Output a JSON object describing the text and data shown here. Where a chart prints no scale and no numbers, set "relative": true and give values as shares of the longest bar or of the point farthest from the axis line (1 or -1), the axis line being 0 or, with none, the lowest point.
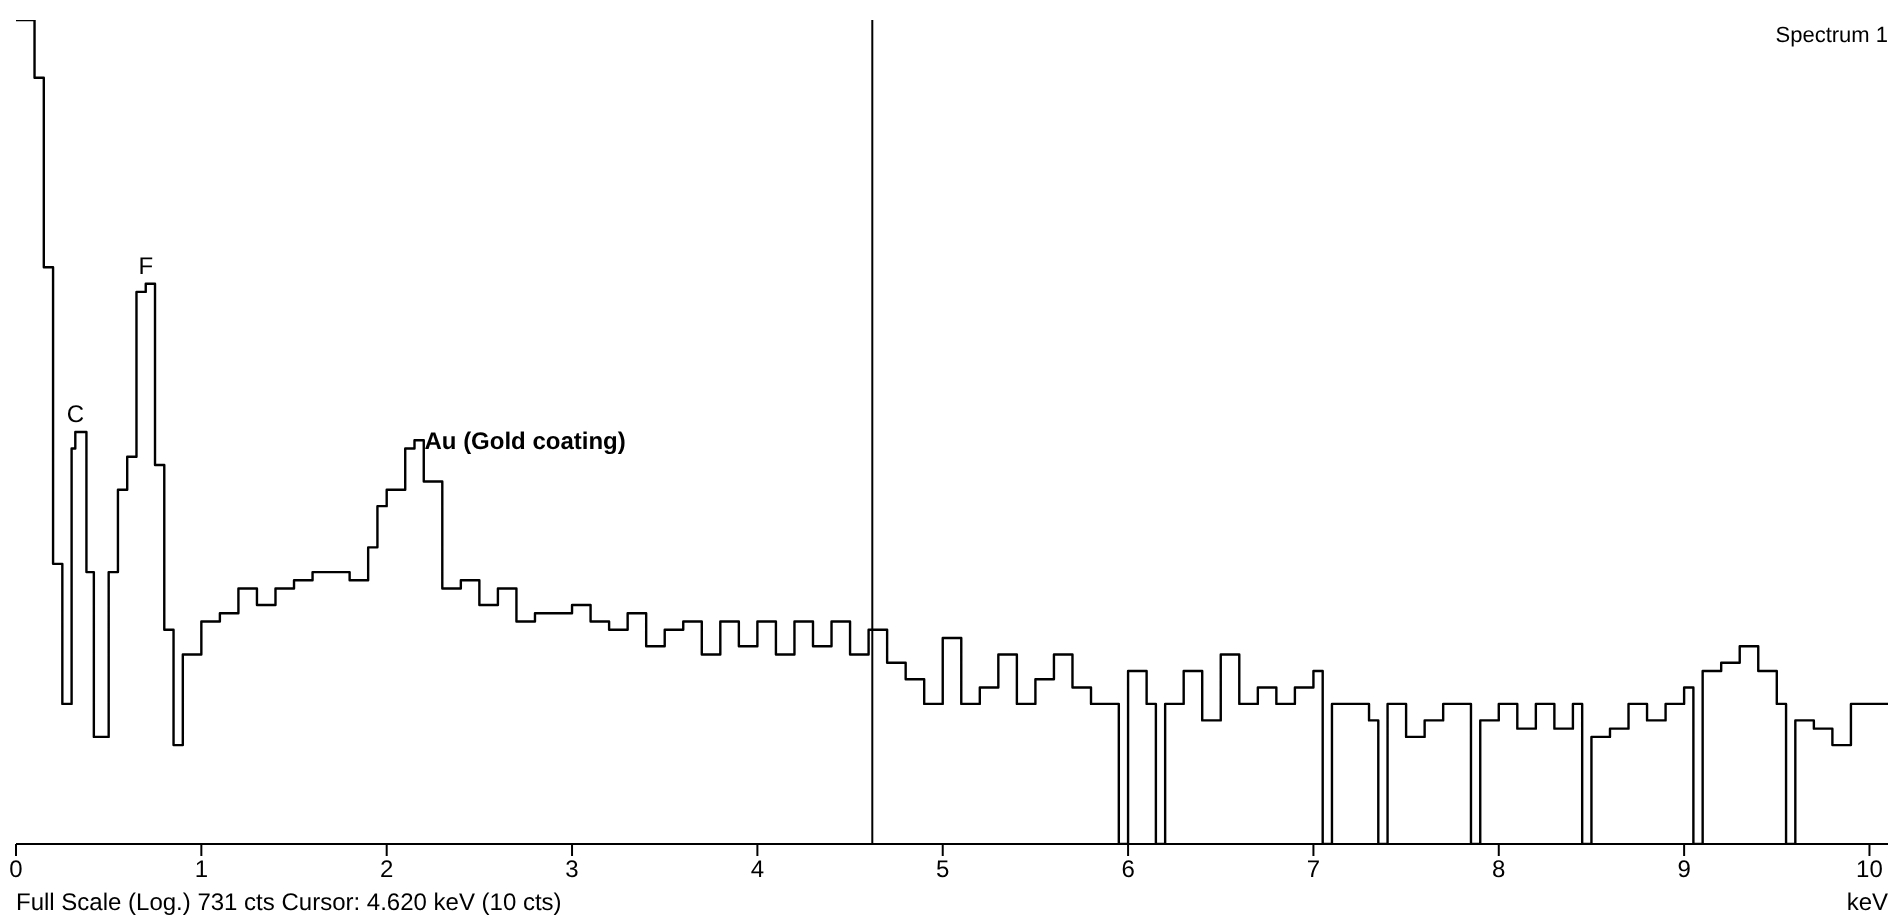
{
  "chart_data": {
    "type": "step",
    "relative": true,
    "xlabel": "keV",
    "xlim": [
      0,
      10.1
    ],
    "xticks": [
      0,
      1,
      2,
      3,
      4,
      5,
      6,
      7,
      8,
      9,
      10
    ],
    "x": [
      0,
      0.05,
      0.1,
      0.15,
      0.2,
      0.25,
      0.3,
      0.32,
      0.38,
      0.42,
      0.5,
      0.55,
      0.6,
      0.65,
      0.7,
      0.75,
      0.8,
      0.85,
      0.9,
      1.0,
      1.1,
      1.2,
      1.3,
      1.4,
      1.5,
      1.6,
      1.7,
      1.8,
      1.9,
      1.95,
      2.0,
      2.1,
      2.15,
      2.2,
      2.3,
      2.4,
      2.5,
      2.6,
      2.7,
      2.8,
      2.9,
      3.0,
      3.1,
      3.2,
      3.3,
      3.4,
      3.5,
      3.6,
      3.7,
      3.8,
      3.9,
      4.0,
      4.1,
      4.2,
      4.3,
      4.4,
      4.5,
      4.6,
      4.7,
      4.8,
      4.9,
      5.0,
      5.1,
      5.2,
      5.3,
      5.4,
      5.5,
      5.6,
      5.7,
      5.8,
      5.9,
      5.95,
      6.0,
      6.1,
      6.15,
      6.2,
      6.3,
      6.4,
      6.5,
      6.6,
      6.7,
      6.8,
      6.9,
      7.0,
      7.05,
      7.1,
      7.2,
      7.3,
      7.35,
      7.4,
      7.5,
      7.6,
      7.7,
      7.8,
      7.85,
      7.9,
      8.0,
      8.1,
      8.2,
      8.3,
      8.4,
      8.45,
      8.5,
      8.6,
      8.7,
      8.8,
      8.9,
      9.0,
      9.05,
      9.1,
      9.2,
      9.3,
      9.4,
      9.5,
      9.55,
      9.6,
      9.7,
      9.8,
      9.9,
      10.0,
      10.1
    ],
    "series": [
      {
        "color": "#000000",
        "values": [
          1.0,
          1.0,
          0.93,
          0.7,
          0.34,
          0.17,
          0.48,
          0.5,
          0.33,
          0.13,
          0.33,
          0.43,
          0.47,
          0.67,
          0.68,
          0.46,
          0.26,
          0.12,
          0.23,
          0.27,
          0.28,
          0.31,
          0.29,
          0.31,
          0.32,
          0.33,
          0.33,
          0.32,
          0.36,
          0.41,
          0.43,
          0.48,
          0.49,
          0.44,
          0.31,
          0.32,
          0.29,
          0.31,
          0.27,
          0.28,
          0.28,
          0.29,
          0.27,
          0.26,
          0.28,
          0.24,
          0.26,
          0.27,
          0.23,
          0.27,
          0.24,
          0.27,
          0.23,
          0.27,
          0.24,
          0.27,
          0.23,
          0.26,
          0.22,
          0.2,
          0.17,
          0.25,
          0.17,
          0.19,
          0.23,
          0.17,
          0.2,
          0.23,
          0.19,
          0.17,
          0.17,
          0,
          0.21,
          0.17,
          0,
          0.17,
          0.21,
          0.15,
          0.23,
          0.17,
          0.19,
          0.17,
          0.19,
          0.21,
          0,
          0.17,
          0.17,
          0.15,
          0,
          0.17,
          0.13,
          0.15,
          0.17,
          0.17,
          0,
          0.15,
          0.17,
          0.14,
          0.17,
          0.14,
          0.17,
          0,
          0.13,
          0.14,
          0.17,
          0.15,
          0.17,
          0.19,
          0,
          0.21,
          0.22,
          0.24,
          0.21,
          0.17,
          0,
          0.15,
          0.14,
          0.12,
          0.17,
          0.17,
          0.17
        ]
      }
    ],
    "ref_lines": [
      {
        "axis": "x",
        "value": 4.62,
        "color": "#000000"
      }
    ],
    "annotations": [
      "Spectrum 1",
      "Full Scale (Log.) 731 cts  Cursor: 4.620 keV (10 cts)",
      {
        "text": "C",
        "x": 0.32,
        "y": 0.5
      },
      {
        "text": "F",
        "x": 0.7,
        "y": 0.68
      },
      {
        "text": "Au (Gold coating)",
        "x": 2.15,
        "y": 0.49
      }
    ],
    "line_style": "solid"
  }
}
